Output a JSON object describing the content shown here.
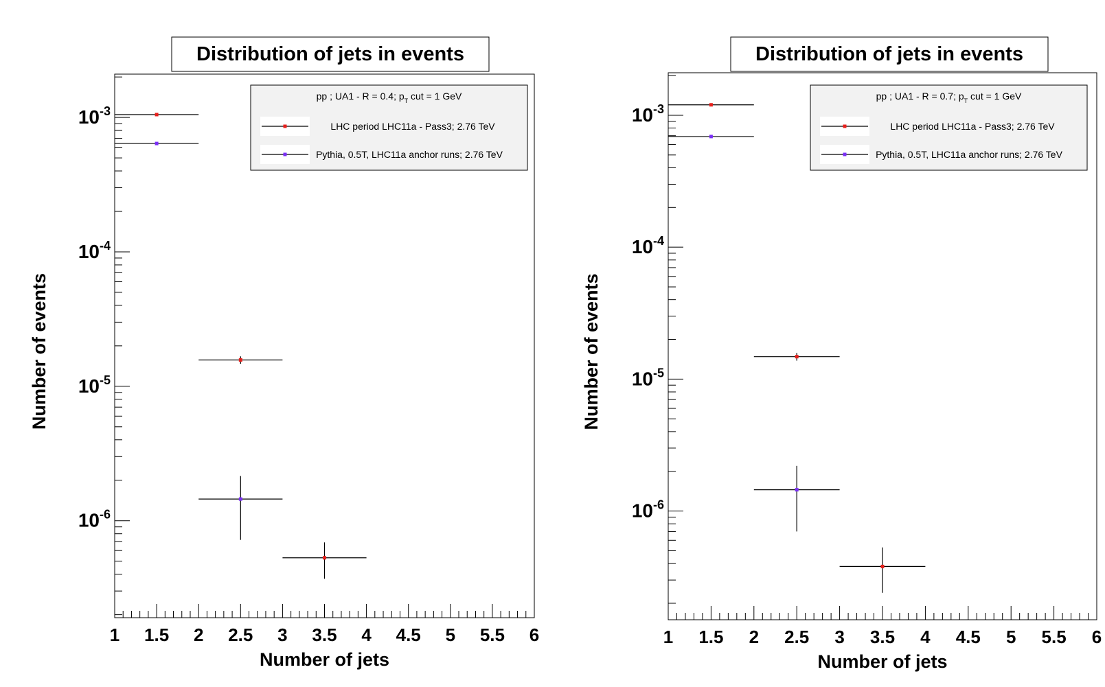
{
  "chart_data": [
    {
      "type": "scatter",
      "title": "Distribution of jets in events",
      "xlabel": "Number of jets",
      "ylabel": "Number of events",
      "y_scale": "log",
      "xlim": [
        1,
        6
      ],
      "ylim": [
        1.9e-07,
        0.0021
      ],
      "x_ticks": [
        "1",
        "1.5",
        "2",
        "2.5",
        "3",
        "3.5",
        "4",
        "4.5",
        "5",
        "5.5",
        "6"
      ],
      "y_ticks": [
        {
          "value": 0.001,
          "base": "10",
          "exp": "-3"
        },
        {
          "value": 0.0001,
          "base": "10",
          "exp": "-4"
        },
        {
          "value": 1e-05,
          "base": "10",
          "exp": "-5"
        },
        {
          "value": 1e-06,
          "base": "10",
          "exp": "-6"
        }
      ],
      "legend": {
        "placement": "top-right",
        "header_main": "pp ; UA1 - R = 0.4; p",
        "header_sub": "T",
        "header_tail": " cut = 1 GeV"
      },
      "series": [
        {
          "name": "LHC period LHC11a - Pass3; 2.76 TeV",
          "color": "#e8201c",
          "points": [
            {
              "x": 1.5,
              "xerr": 0.5,
              "y": 0.00105,
              "ylo": 0.00104,
              "yhi": 0.00106
            },
            {
              "x": 2.5,
              "xerr": 0.5,
              "y": 1.57e-05,
              "ylo": 1.47e-05,
              "yhi": 1.67e-05
            },
            {
              "x": 3.5,
              "xerr": 0.5,
              "y": 5.3e-07,
              "ylo": 3.7e-07,
              "yhi": 6.9e-07
            }
          ]
        },
        {
          "name": "Pythia, 0.5T, LHC11a anchor runs; 2.76 TeV",
          "color": "#7b2ff7",
          "points": [
            {
              "x": 1.5,
              "xerr": 0.5,
              "y": 0.00064,
              "ylo": 0.000635,
              "yhi": 0.000645
            },
            {
              "x": 2.5,
              "xerr": 0.5,
              "y": 1.45e-06,
              "ylo": 7.2e-07,
              "yhi": 2.15e-06
            }
          ]
        }
      ]
    },
    {
      "type": "scatter",
      "title": "Distribution of jets in events",
      "xlabel": "Number of jets",
      "ylabel": "Number of events",
      "y_scale": "log",
      "xlim": [
        1,
        6
      ],
      "ylim": [
        1.5e-07,
        0.0021
      ],
      "x_ticks": [
        "1",
        "1.5",
        "2",
        "2.5",
        "3",
        "3.5",
        "4",
        "4.5",
        "5",
        "5.5",
        "6"
      ],
      "y_ticks": [
        {
          "value": 0.001,
          "base": "10",
          "exp": "-3"
        },
        {
          "value": 0.0001,
          "base": "10",
          "exp": "-4"
        },
        {
          "value": 1e-05,
          "base": "10",
          "exp": "-5"
        },
        {
          "value": 1e-06,
          "base": "10",
          "exp": "-6"
        }
      ],
      "legend": {
        "placement": "top-right",
        "header_main": "pp ; UA1 - R = 0.7; p",
        "header_sub": "T",
        "header_tail": " cut = 1 GeV"
      },
      "series": [
        {
          "name": "LHC period LHC11a - Pass3; 2.76 TeV",
          "color": "#e8201c",
          "points": [
            {
              "x": 1.5,
              "xerr": 0.5,
              "y": 0.0012,
              "ylo": 0.00119,
              "yhi": 0.00121
            },
            {
              "x": 2.5,
              "xerr": 0.5,
              "y": 1.48e-05,
              "ylo": 1.38e-05,
              "yhi": 1.58e-05
            },
            {
              "x": 3.5,
              "xerr": 0.5,
              "y": 3.8e-07,
              "ylo": 2.4e-07,
              "yhi": 5.3e-07
            }
          ]
        },
        {
          "name": "Pythia, 0.5T, LHC11a anchor runs; 2.76 TeV",
          "color": "#7b2ff7",
          "points": [
            {
              "x": 1.5,
              "xerr": 0.5,
              "y": 0.00069,
              "ylo": 0.000685,
              "yhi": 0.000695
            },
            {
              "x": 2.5,
              "xerr": 0.5,
              "y": 1.45e-06,
              "ylo": 7e-07,
              "yhi": 2.2e-06
            }
          ]
        }
      ]
    }
  ]
}
